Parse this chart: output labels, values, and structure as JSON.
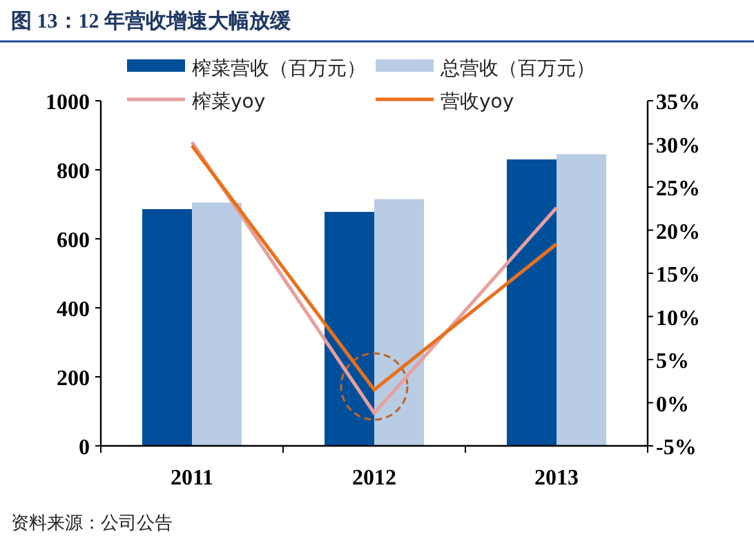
{
  "chart_data": {
    "type": "bar",
    "title": "图 13：12 年营收增速大幅放缓",
    "categories": [
      "2011",
      "2012",
      "2013"
    ],
    "series": [
      {
        "name": "榨菜营收（百万元）",
        "color": "#004f9b",
        "values": [
          686,
          678,
          830
        ]
      },
      {
        "name": "总营收（百万元）",
        "color": "#b8cce4",
        "values": [
          705,
          715,
          845
        ]
      },
      {
        "name": "榨菜yoy",
        "type": "line",
        "axis": "y2",
        "color": "#e6a0a0",
        "values": [
          30.2,
          -1.2,
          22.6
        ]
      },
      {
        "name": "营收yoy",
        "type": "line",
        "axis": "y2",
        "color": "#e8711c",
        "values": [
          29.8,
          1.5,
          18.4
        ]
      }
    ],
    "ylim": [
      0,
      1000
    ],
    "yticks": [
      0,
      200,
      400,
      600,
      800,
      1000
    ],
    "y2lim": [
      -5,
      35
    ],
    "y2ticks": [
      {
        "value": -5,
        "label": "-5%"
      },
      {
        "value": 0,
        "label": "0%"
      },
      {
        "value": 5,
        "label": "5%"
      },
      {
        "value": 10,
        "label": "10%"
      },
      {
        "value": 15,
        "label": "15%"
      },
      {
        "value": 20,
        "label": "20%"
      },
      {
        "value": 25,
        "label": "25%"
      },
      {
        "value": 30,
        "label": "30%"
      },
      {
        "value": 35,
        "label": "35%"
      }
    ],
    "legend": "top",
    "grid": false,
    "marker": "none",
    "line_style": "solid",
    "annotations": [
      "资料来源：公司公告"
    ]
  }
}
